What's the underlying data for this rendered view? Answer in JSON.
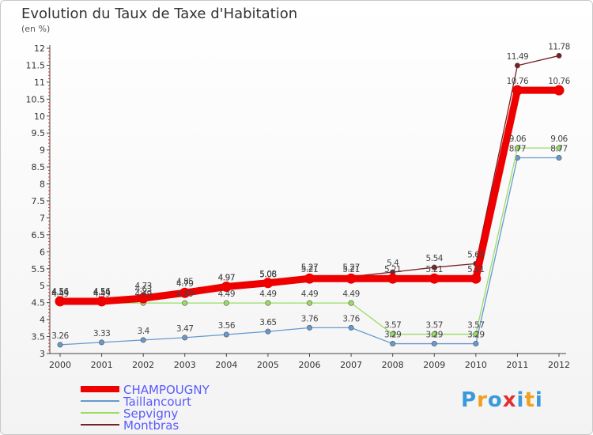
{
  "chart_data": {
    "type": "line",
    "title": "Evolution du Taux de Taxe d'Habitation",
    "unit_label": "(en %)",
    "x": [
      "2000",
      "2001",
      "2002",
      "2003",
      "2004",
      "2005",
      "2006",
      "2007",
      "2008",
      "2009",
      "2010",
      "2011",
      "2012"
    ],
    "ylim": [
      3,
      12
    ],
    "y_ticks": [
      "3",
      "3.5",
      "4",
      "4.5",
      "5",
      "5.5",
      "6",
      "6.5",
      "7",
      "7.5",
      "8",
      "8.5",
      "9",
      "9.5",
      "10",
      "10.5",
      "11",
      "11.5",
      "12"
    ],
    "grid": false,
    "legend_position": "bottom-left",
    "series": [
      {
        "name": "CHAMPOUGNY",
        "color": "#ee0000",
        "bold": true,
        "values": [
          4.54,
          4.54,
          4.63,
          4.79,
          4.97,
          5.08,
          5.21,
          5.21,
          5.21,
          5.21,
          5.21,
          10.76,
          10.76
        ],
        "labels": [
          "4.54",
          "4.54",
          "4.63",
          "4.79",
          "4.97",
          "5.08",
          "5.21",
          "5.21",
          "5.21",
          "5.21",
          "5.21",
          "10.76",
          "10.76"
        ]
      },
      {
        "name": "Taillancourt",
        "color": "#6699cc",
        "bold": false,
        "values": [
          3.26,
          3.33,
          3.4,
          3.47,
          3.56,
          3.65,
          3.76,
          3.76,
          3.29,
          3.29,
          3.29,
          8.77,
          8.77
        ],
        "labels": [
          "3.26",
          "3.33",
          "3.4",
          "3.47",
          "3.56",
          "3.65",
          "3.76",
          "3.76",
          "3.29",
          "3.29",
          "3.29",
          "8.77",
          "8.77"
        ]
      },
      {
        "name": "Sepvigny",
        "color": "#99dd66",
        "bold": false,
        "values": [
          4.49,
          4.49,
          4.49,
          4.49,
          4.49,
          4.49,
          4.49,
          4.49,
          3.57,
          3.57,
          3.57,
          9.06,
          9.06
        ],
        "labels": [
          "4.49",
          "4.49",
          "4.49",
          "4.49",
          "4.49",
          "4.49",
          "4.49",
          "4.49",
          "3.57",
          "3.57",
          "3.57",
          "9.06",
          "9.06"
        ]
      },
      {
        "name": "Montbras",
        "color": "#772222",
        "bold": false,
        "values": [
          4.56,
          4.56,
          4.73,
          4.85,
          4.97,
          5.06,
          5.27,
          5.27,
          5.4,
          5.54,
          5.65,
          11.49,
          11.78
        ],
        "labels": [
          "4.56",
          "4.56",
          "4.73",
          "4.85",
          "4.97",
          "5.06",
          "5.27",
          "5.27",
          "5.4",
          "5.54",
          "5.65",
          "11.49",
          "11.78"
        ]
      }
    ]
  },
  "logo": {
    "text": "Proxiti",
    "letters": [
      "P",
      "r",
      "o",
      "x",
      "i",
      "t",
      "i"
    ],
    "colors": [
      "#3a9ad9",
      "#f0a020",
      "#3a9ad9",
      "#e23030",
      "#3a9ad9",
      "#f0a020",
      "#3a9ad9"
    ]
  }
}
